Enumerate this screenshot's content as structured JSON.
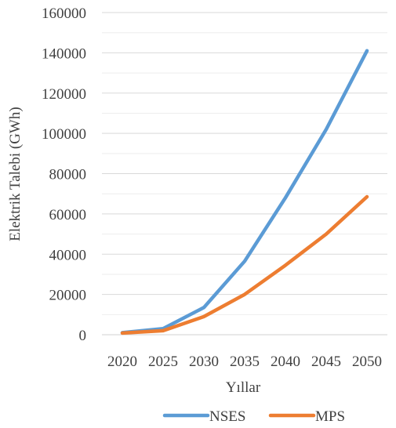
{
  "chart_data": {
    "type": "line",
    "title": "",
    "xlabel": "Yıllar",
    "ylabel": "Elektrik Talebi (GWh)",
    "x": [
      "2020",
      "2025",
      "2030",
      "2035",
      "2040",
      "2045",
      "2050"
    ],
    "ylim": [
      0,
      160000
    ],
    "yticks": [
      0,
      20000,
      40000,
      60000,
      80000,
      100000,
      120000,
      140000,
      160000
    ],
    "grid": true,
    "legend_position": "bottom",
    "series": [
      {
        "name": "NSES",
        "color": "#5B9BD5",
        "values": [
          1000,
          3000,
          13500,
          36500,
          68000,
          102000,
          141000
        ]
      },
      {
        "name": "MPS",
        "color": "#ED7D31",
        "values": [
          800,
          2000,
          9000,
          20000,
          34500,
          50000,
          68500
        ]
      }
    ]
  }
}
